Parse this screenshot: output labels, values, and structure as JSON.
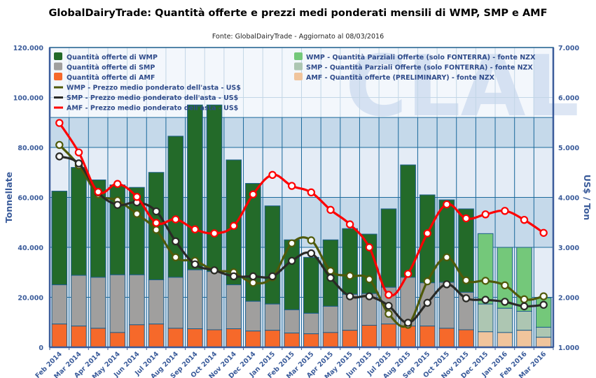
{
  "chart_data": {
    "type": "bar",
    "title": "GlobalDairyTrade: Quantità offerte e prezzi medi ponderati mensili di WMP, SMP e AMF",
    "subtitle": "Fonte: GlobalDairyTrade - Aggiornato al 08/03/2016",
    "ylabel": "Tonnellate",
    "y2label": "US$ / Ton",
    "ylim": [
      0,
      120000
    ],
    "y2lim": [
      1000,
      7000
    ],
    "yticks": [
      "0",
      "20.000",
      "40.000",
      "60.000",
      "80.000",
      "100.000",
      "120.000"
    ],
    "y2ticks": [
      "1.000",
      "2.000",
      "3.000",
      "4.000",
      "5.000",
      "6.000",
      "7.000"
    ],
    "grid": true,
    "legend_position": "top-inside",
    "categories": [
      "Feb 2014",
      "Mar 2014",
      "Apr 2014",
      "May 2014",
      "Jun 2014",
      "Jul 2014",
      "Aug 2014",
      "Sep 2014",
      "Oct 2014",
      "Nov 2014",
      "Dec 2014",
      "Jan 2015",
      "Feb 2015",
      "Mar 2015",
      "Apr 2015",
      "May 2015",
      "Jun 2015",
      "Jul 2015",
      "Aug 2015",
      "Sep 2015",
      "Oct 2015",
      "Nov 2015",
      "Dec 2015",
      "Jan 2016",
      "Feb 2016",
      "Mar 2016"
    ],
    "preliminary_from_index": 22,
    "stack_totals": {
      "wmp_top": [
        62500,
        72000,
        67000,
        65000,
        64000,
        70000,
        84500,
        97000,
        97000,
        75000,
        65600,
        56600,
        43000,
        36000,
        43000,
        47500,
        45300,
        55400,
        73000,
        61000,
        59000,
        55400,
        45500,
        40000,
        40000,
        19800
      ],
      "smp_top": [
        25000,
        28800,
        28000,
        29000,
        29000,
        27000,
        28000,
        31000,
        30300,
        25000,
        18400,
        17300,
        15000,
        13600,
        16400,
        21200,
        21500,
        24000,
        28000,
        25800,
        26000,
        22000,
        17300,
        15600,
        14400,
        8000
      ],
      "amf_top": [
        9300,
        8500,
        7600,
        5900,
        9000,
        9300,
        7600,
        7400,
        7000,
        7400,
        6500,
        6800,
        5700,
        5400,
        5900,
        6800,
        8800,
        9300,
        8500,
        8500,
        7600,
        7000,
        6200,
        5900,
        6800,
        4000
      ]
    },
    "series": [
      {
        "name": "Quantità offerte di WMP",
        "kind": "bar",
        "color": "#236a29",
        "values": [
          37500,
          43200,
          39000,
          36000,
          35000,
          43000,
          56500,
          66000,
          66700,
          50000,
          47200,
          39300,
          28000,
          22400,
          26600,
          26300,
          23800,
          31400,
          45000,
          35200,
          33000,
          33400,
          null,
          null,
          null,
          null
        ]
      },
      {
        "name": "Quantità offerte di SMP",
        "kind": "bar",
        "color": "#a09f9e",
        "values": [
          15700,
          20300,
          20400,
          23100,
          20000,
          17700,
          20400,
          23600,
          23300,
          17600,
          11900,
          10500,
          9300,
          8200,
          10500,
          14400,
          12700,
          14700,
          19500,
          17300,
          18400,
          15000,
          null,
          null,
          null,
          null
        ]
      },
      {
        "name": "Quantità offerte di AMF",
        "kind": "bar",
        "color": "#f6692a",
        "values": [
          9300,
          8500,
          7600,
          5900,
          9000,
          9300,
          7600,
          7400,
          7000,
          7400,
          6500,
          6800,
          5700,
          5400,
          5900,
          6800,
          8800,
          9300,
          8500,
          8500,
          7600,
          7000,
          null,
          null,
          null,
          null
        ]
      },
      {
        "name": "WMP - Quantità Parziali Offerte (solo FONTERRA) - fonte NZX",
        "kind": "bar",
        "color": "#74c87a",
        "values": [
          null,
          null,
          null,
          null,
          null,
          null,
          null,
          null,
          null,
          null,
          null,
          null,
          null,
          null,
          null,
          null,
          null,
          null,
          null,
          null,
          null,
          null,
          28200,
          24400,
          25600,
          11800
        ]
      },
      {
        "name": "SMP - Quantità Parziali Offerte (solo FONTERRA) - fonte NZX",
        "kind": "bar",
        "color": "#adc6b2",
        "values": [
          null,
          null,
          null,
          null,
          null,
          null,
          null,
          null,
          null,
          null,
          null,
          null,
          null,
          null,
          null,
          null,
          null,
          null,
          null,
          null,
          null,
          null,
          11100,
          9700,
          7600,
          4000
        ]
      },
      {
        "name": "AMF - Quantità offerte (PRELIMINARY) - fonte NZX",
        "kind": "bar",
        "color": "#f0c49c",
        "values": [
          null,
          null,
          null,
          null,
          null,
          null,
          null,
          null,
          null,
          null,
          null,
          null,
          null,
          null,
          null,
          null,
          null,
          null,
          null,
          null,
          null,
          null,
          6200,
          5900,
          6800,
          4000
        ]
      },
      {
        "name": "WMP - Prezzo medio ponderato dell'asta - US$",
        "kind": "line",
        "axis": "right",
        "color": "#4f5a0a",
        "values": [
          5050,
          4640,
          4060,
          3940,
          3670,
          3350,
          2800,
          2730,
          2540,
          2500,
          2290,
          2400,
          3080,
          3140,
          2530,
          2430,
          2360,
          1670,
          1450,
          2320,
          2800,
          2340,
          2330,
          2240,
          1960,
          2020
        ]
      },
      {
        "name": "SMP - Prezzo medio ponderato dell'asta - US$",
        "kind": "line",
        "axis": "right",
        "color": "#2a2a26",
        "values": [
          4820,
          4680,
          4100,
          3850,
          3900,
          3720,
          3120,
          2660,
          2540,
          2420,
          2420,
          2420,
          2730,
          2880,
          2390,
          2020,
          2020,
          1830,
          1490,
          1890,
          2260,
          1980,
          1950,
          1910,
          1820,
          1850
        ]
      },
      {
        "name": "AMF - Prezzo medio ponderato dell'asta - US$",
        "kind": "line",
        "axis": "right",
        "color": "#ff0000",
        "values": [
          5490,
          4900,
          4110,
          4270,
          4010,
          3490,
          3560,
          3360,
          3280,
          3430,
          4060,
          4450,
          4230,
          4100,
          3750,
          3460,
          3000,
          2050,
          2470,
          3280,
          3860,
          3580,
          3660,
          3730,
          3550,
          3290
        ]
      }
    ]
  },
  "legend": {
    "left": [
      {
        "label": "Quantità offerte di WMP",
        "icon": "square",
        "color": "#236a29"
      },
      {
        "label": "Quantità offerte di SMP",
        "icon": "square",
        "color": "#a09f9e"
      },
      {
        "label": "Quantità offerte di AMF",
        "icon": "square",
        "color": "#f6692a"
      },
      {
        "label": "WMP - Prezzo medio ponderato dell'asta - US$",
        "icon": "line",
        "color": "#4f5a0a"
      },
      {
        "label": "SMP - Prezzo medio ponderato dell'asta - US$",
        "icon": "line",
        "color": "#2a2a26"
      },
      {
        "label": "AMF - Prezzo medio ponderato dell'asta - US$",
        "icon": "line",
        "color": "#ff0000"
      }
    ],
    "right": [
      {
        "label": "WMP - Quantità Parziali Offerte (solo FONTERRA) - fonte NZX",
        "icon": "square",
        "color": "#74c87a"
      },
      {
        "label": "SMP - Quantità Parziali Offerte (solo FONTERRA) - fonte NZX",
        "icon": "square",
        "color": "#adc6b2"
      },
      {
        "label": "AMF - Quantità offerte (PRELIMINARY) - fonte NZX",
        "icon": "square",
        "color": "#f0c49c"
      }
    ]
  },
  "watermark": "CLAL"
}
